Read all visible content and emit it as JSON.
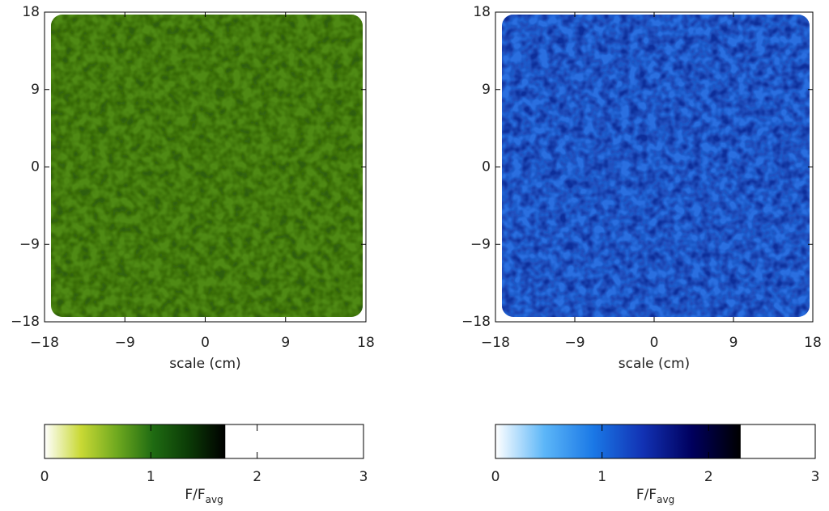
{
  "chart_data": [
    {
      "type": "heatmap",
      "xlabel": "scale (cm)",
      "fill_color": "#4f8a14",
      "texture_color": "#2f5f08",
      "xlim": [
        -18,
        18
      ],
      "ylim": [
        -18,
        18
      ],
      "xticks": [
        {
          "value": -18,
          "label": "−18"
        },
        {
          "value": -9,
          "label": "−9"
        },
        0,
        9,
        18
      ],
      "yticks": [
        {
          "value": -18,
          "label": "−18"
        },
        {
          "value": -9,
          "label": "−9"
        },
        0,
        9,
        18
      ],
      "colorbar": {
        "label": "F/F",
        "label_sub": "avg",
        "lim": [
          0,
          3
        ],
        "ticks": [
          0,
          1,
          2,
          3
        ],
        "max": 1.7,
        "colormap": [
          "#ffffff",
          "#c9d935",
          "#6fa91f",
          "#1f6b12",
          "#0b3a06",
          "#000000"
        ]
      }
    },
    {
      "type": "heatmap",
      "xlabel": "scale (cm)",
      "fill_color": "#2a6fe0",
      "texture_color": "#0f2f9a",
      "xlim": [
        -18,
        18
      ],
      "ylim": [
        -18,
        18
      ],
      "xticks": [
        {
          "value": -18,
          "label": "−18"
        },
        {
          "value": -9,
          "label": "−9"
        },
        0,
        9,
        18
      ],
      "yticks": [
        {
          "value": -18,
          "label": "−18"
        },
        {
          "value": -9,
          "label": "−9"
        },
        0,
        9,
        18
      ],
      "colorbar": {
        "label": "F/F",
        "label_sub": "avg",
        "lim": [
          0,
          3
        ],
        "ticks": [
          0,
          1,
          2,
          3
        ],
        "max": 2.3,
        "colormap": [
          "#ffffff",
          "#5cb6f8",
          "#1a78e6",
          "#1232b4",
          "#00005e",
          "#000000"
        ]
      }
    }
  ]
}
